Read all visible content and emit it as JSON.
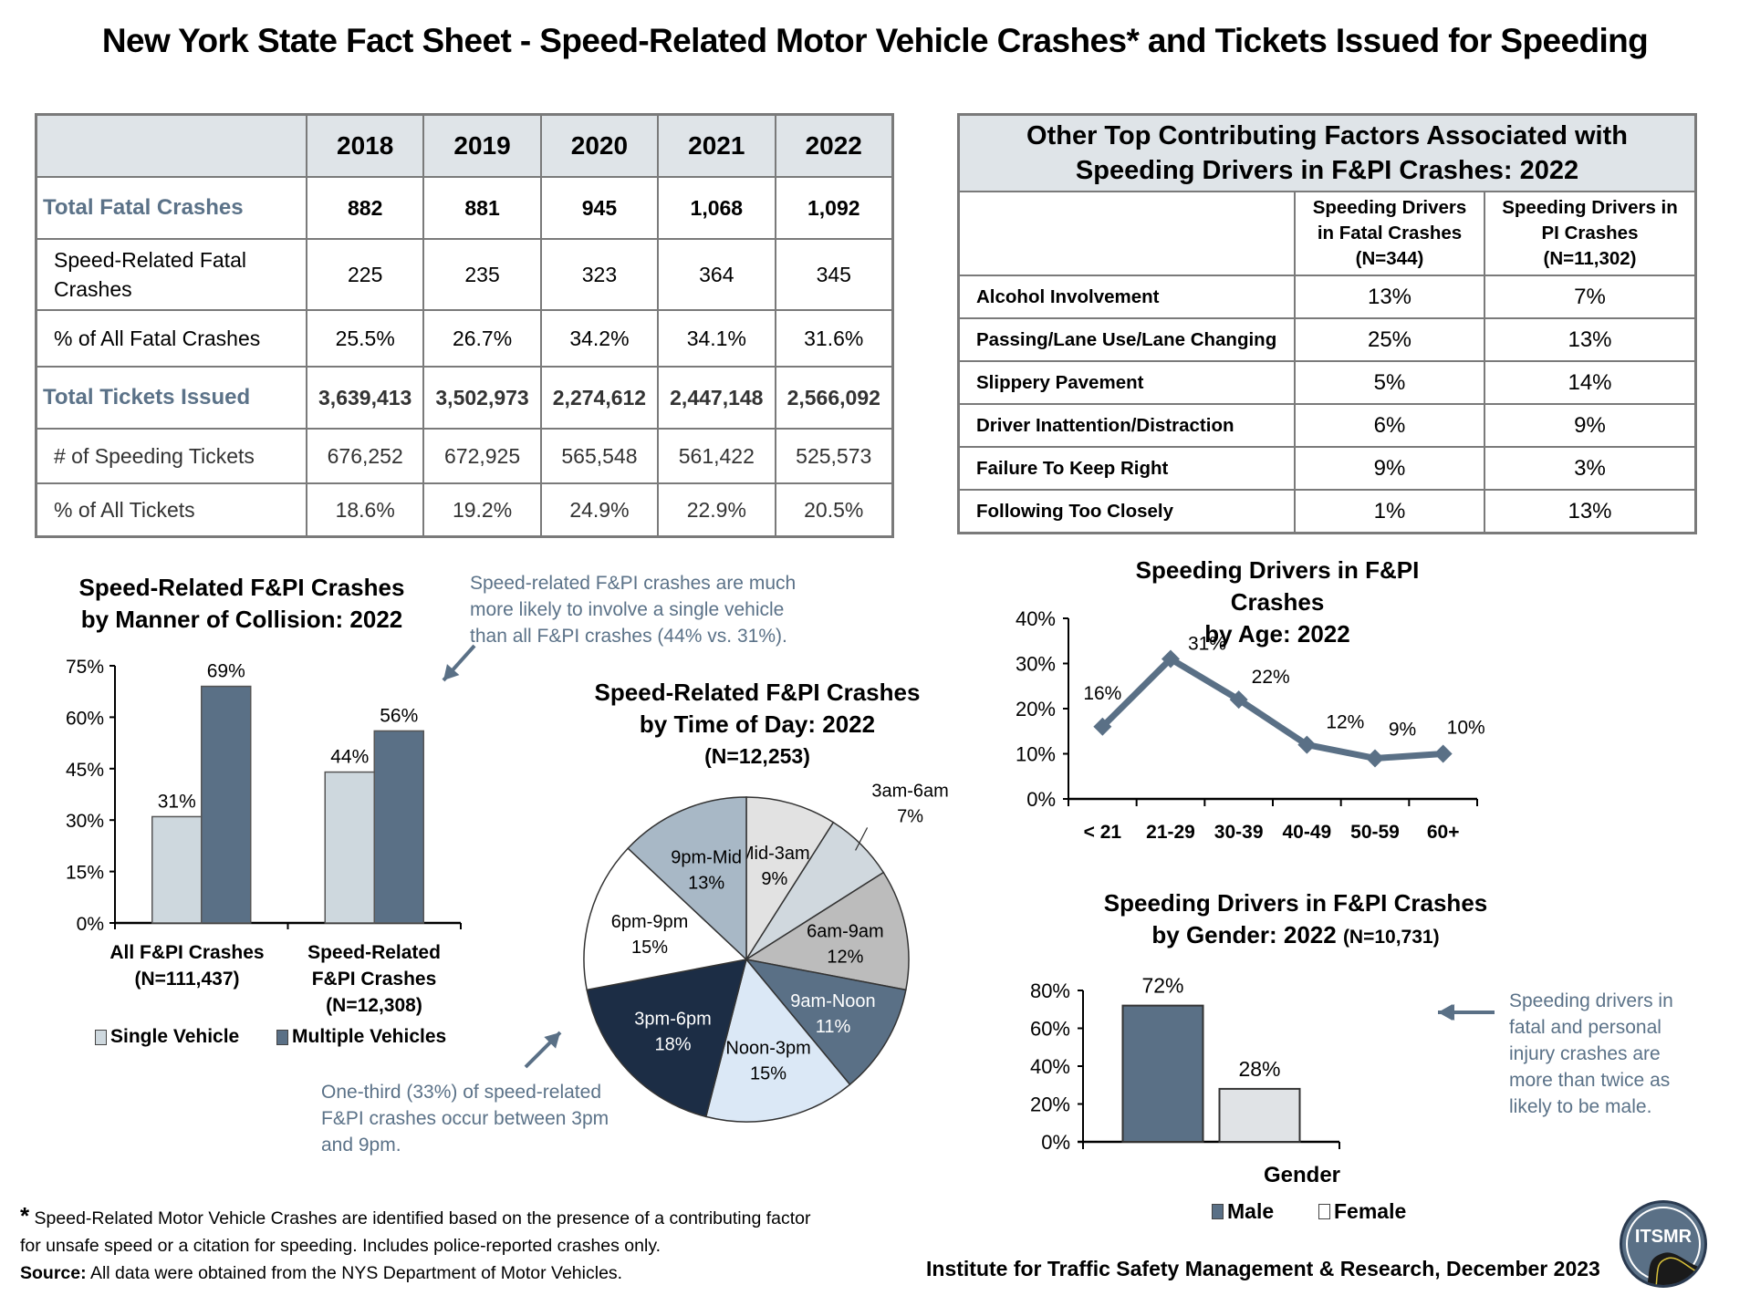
{
  "title": "New York State Fact Sheet - Speed-Related Motor Vehicle Crashes* and Tickets Issued for Speeding",
  "main_table": {
    "years": [
      "2018",
      "2019",
      "2020",
      "2021",
      "2022"
    ],
    "rows": [
      {
        "label": "Total Fatal Crashes",
        "values": [
          "882",
          "881",
          "945",
          "1,068",
          "1,092"
        ]
      },
      {
        "label": "Speed-Related Fatal Crashes",
        "values": [
          "225",
          "235",
          "323",
          "364",
          "345"
        ]
      },
      {
        "label": "% of All Fatal Crashes",
        "values": [
          "25.5%",
          "26.7%",
          "34.2%",
          "34.1%",
          "31.6%"
        ]
      },
      {
        "label": "Total Tickets Issued",
        "values": [
          "3,639,413",
          "3,502,973",
          "2,274,612",
          "2,447,148",
          "2,566,092"
        ]
      },
      {
        "label": "# of Speeding Tickets",
        "values": [
          "676,252",
          "672,925",
          "565,548",
          "561,422",
          "525,573"
        ]
      },
      {
        "label": "% of All Tickets",
        "values": [
          "18.6%",
          "19.2%",
          "24.9%",
          "22.9%",
          "20.5%"
        ]
      }
    ]
  },
  "factors_table": {
    "title_line1": "Other Top Contributing Factors Associated with",
    "title_line2": "Speeding Drivers in F&PI Crashes: 2022",
    "col1": [
      "Speeding Drivers",
      "in Fatal Crashes",
      "(N=344)"
    ],
    "col2": [
      "Speeding Drivers in",
      "PI Crashes",
      "(N=11,302)"
    ],
    "rows": [
      {
        "factor": "Alcohol Involvement",
        "fatal": "13%",
        "pi": "7%"
      },
      {
        "factor": "Passing/Lane Use/Lane Changing",
        "fatal": "25%",
        "pi": "13%"
      },
      {
        "factor": "Slippery Pavement",
        "fatal": "5%",
        "pi": "14%"
      },
      {
        "factor": "Driver Inattention/Distraction",
        "fatal": "6%",
        "pi": "9%"
      },
      {
        "factor": "Failure To Keep Right",
        "fatal": "9%",
        "pi": "3%"
      },
      {
        "factor": "Following Too Closely",
        "fatal": "1%",
        "pi": "13%"
      }
    ]
  },
  "notes": {
    "collision": [
      "Speed-related F&PI crashes are much",
      "more likely to involve a single vehicle",
      "than all F&PI crashes (44% vs. 31%)."
    ],
    "time": [
      "One-third (33%) of speed-related",
      "F&PI crashes occur between 3pm",
      "and 9pm."
    ],
    "gender": [
      "Speeding drivers in",
      "fatal and personal",
      "injury crashes are",
      "more than twice as",
      "likely to be male."
    ]
  },
  "chart_data": [
    {
      "type": "bar",
      "title_line1": "Speed-Related F&PI Crashes",
      "title_line2": "by Manner of Collision: 2022",
      "categories": [
        [
          "All F&PI Crashes",
          "(N=111,437)"
        ],
        [
          "Speed-Related",
          "F&PI Crashes",
          "(N=12,308)"
        ]
      ],
      "series": [
        {
          "name": "Single Vehicle",
          "values": [
            31,
            44
          ],
          "color": "#ced8de"
        },
        {
          "name": "Multiple Vehicles",
          "values": [
            69,
            56
          ],
          "color": "#5a7086"
        }
      ],
      "ylim": [
        0,
        75
      ],
      "yticks": [
        "0%",
        "15%",
        "30%",
        "45%",
        "60%",
        "75%"
      ],
      "ytick_values": [
        0,
        15,
        30,
        45,
        60,
        75
      ],
      "legend": "bottom"
    },
    {
      "type": "pie",
      "title_line1": "Speed-Related F&PI Crashes",
      "title_line2": "by Time of Day: 2022",
      "title_line3": "(N=12,253)",
      "slices": [
        {
          "label": "Mid-3am",
          "value": 9,
          "color": "#e2e2e2",
          "text": "#000000"
        },
        {
          "label": "3am-6am",
          "value": 7,
          "color": "#d0d8de",
          "text": "#000000"
        },
        {
          "label": "6am-9am",
          "value": 12,
          "color": "#bcbcbc",
          "text": "#000000"
        },
        {
          "label": "9am-Noon",
          "value": 11,
          "color": "#5a7086",
          "text": "#ffffff"
        },
        {
          "label": "Noon-3pm",
          "value": 15,
          "color": "#dbe8f6",
          "text": "#000000"
        },
        {
          "label": "3pm-6pm",
          "value": 18,
          "color": "#1c2d45",
          "text": "#ffffff"
        },
        {
          "label": "6pm-9pm",
          "value": 15,
          "color": "#ffffff",
          "text": "#000000"
        },
        {
          "label": "9pm-Mid",
          "value": 13,
          "color": "#a8b8c6",
          "text": "#000000"
        }
      ]
    },
    {
      "type": "line",
      "title_line1": "Speeding Drivers in F&PI Crashes",
      "title_line2": "by Age: 2022",
      "categories": [
        "< 21",
        "21-29",
        "30-39",
        "40-49",
        "50-59",
        "60+"
      ],
      "values": [
        16,
        31,
        22,
        12,
        9,
        10
      ],
      "labels": [
        "16%",
        "31%",
        "22%",
        "12%",
        "9%",
        "10%"
      ],
      "ylim": [
        0,
        40
      ],
      "yticks": [
        "0%",
        "10%",
        "20%",
        "30%",
        "40%"
      ],
      "ytick_values": [
        0,
        10,
        20,
        30,
        40
      ],
      "color": "#5a7086"
    },
    {
      "type": "bar",
      "title_line1": "Speeding Drivers in F&PI Crashes",
      "title_line2": "by Gender: 2022",
      "title_n": "(N=10,731)",
      "xlabel": "Gender",
      "series": [
        {
          "name": "Male",
          "values": [
            72
          ],
          "color": "#5a7086"
        },
        {
          "name": "Female",
          "values": [
            28
          ],
          "color": "#e0e3e6"
        }
      ],
      "ylim": [
        0,
        80
      ],
      "yticks": [
        "0%",
        "20%",
        "40%",
        "60%",
        "80%"
      ],
      "ytick_values": [
        0,
        20,
        40,
        60,
        80
      ],
      "legend": "bottom"
    }
  ],
  "footer": {
    "footnote_line1": "Speed-Related Motor Vehicle Crashes are identified based on the presence of a contributing factor",
    "footnote_line2": "for unsafe speed or a citation for speeding.  Includes police-reported crashes only.",
    "asterisk": "*",
    "source_label": "Source:",
    "source_text": " All data were obtained from the NYS Department of Motor Vehicles.",
    "institute": "Institute for Traffic Safety Management & Research, December 2023",
    "logo_text": "ITSMR"
  }
}
